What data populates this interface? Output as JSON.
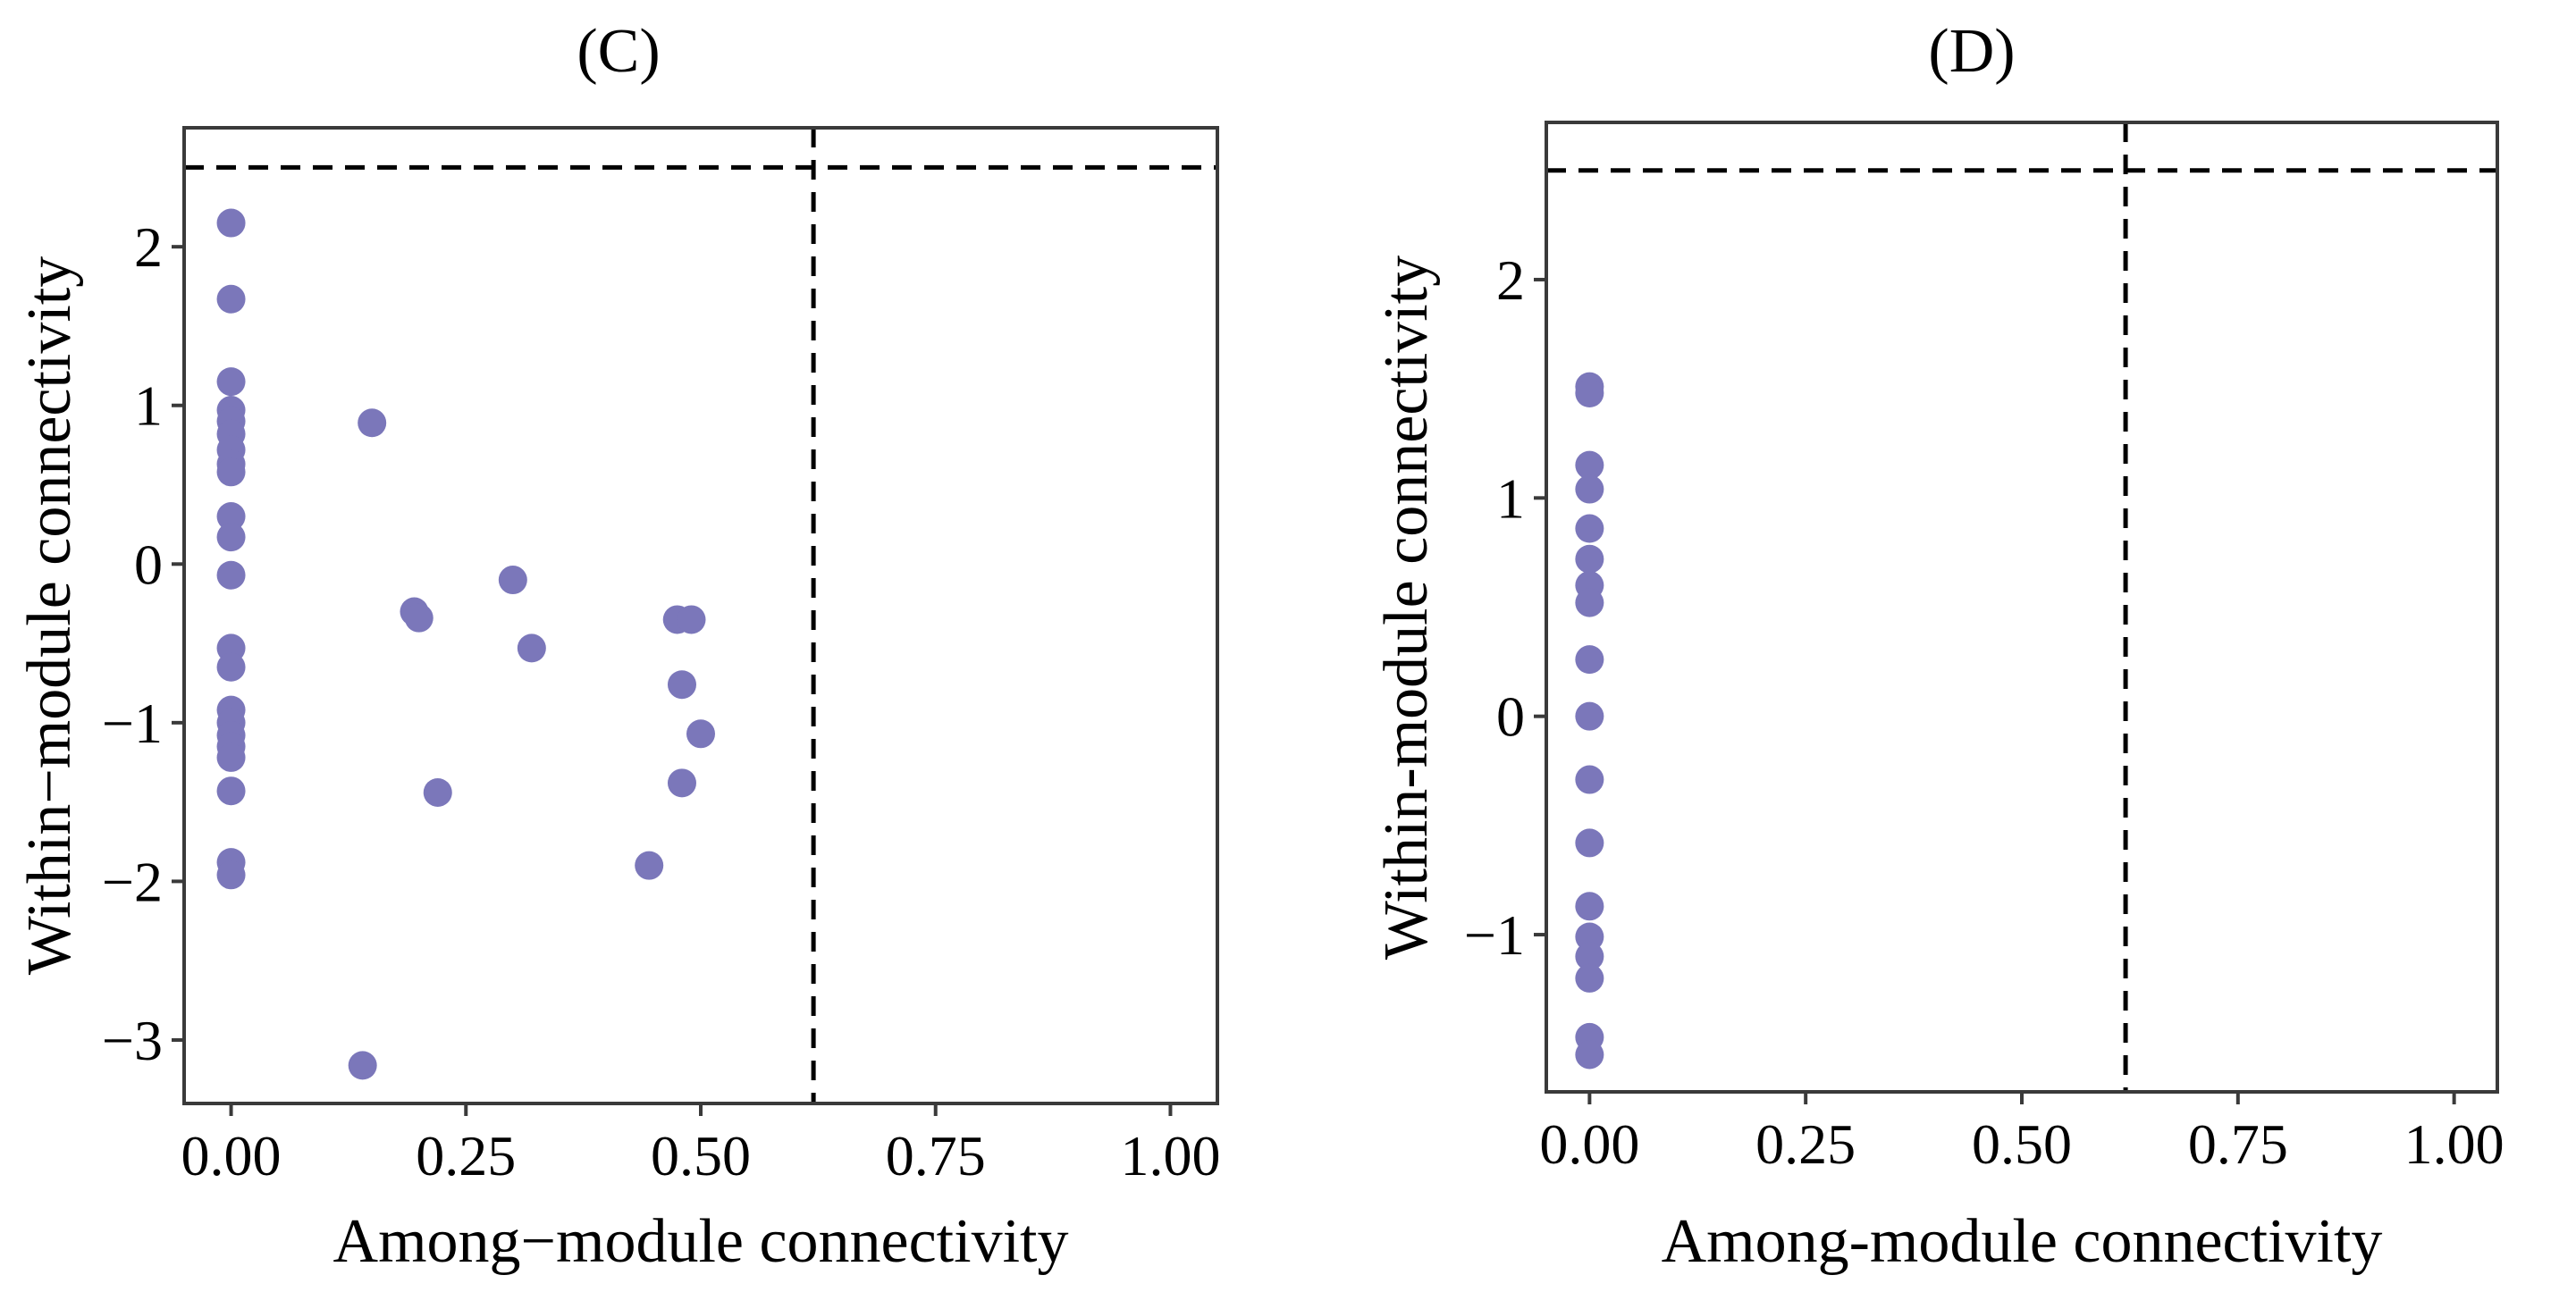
{
  "figure": {
    "colors": {
      "point": "#7B77BA",
      "axis": "#3a3a3a",
      "reference_line": "#000000"
    },
    "panels": [
      {
        "id": "C",
        "title_letter": "C"
      },
      {
        "id": "D",
        "title_letter": "D"
      }
    ]
  },
  "chart_data": [
    {
      "type": "scatter",
      "title": "(C)",
      "xlabel": "Among−module connectivity",
      "ylabel": "Within−module connectivity",
      "xlim": [
        -0.05,
        1.05
      ],
      "ylim": [
        -3.4,
        2.75
      ],
      "xticks": [
        0,
        0.25,
        0.5,
        0.75,
        1
      ],
      "xtick_labels": [
        "0.00",
        "0.25",
        "0.50",
        "0.75",
        "1.00"
      ],
      "yticks": [
        -3,
        -2,
        -1,
        0,
        1,
        2
      ],
      "ytick_labels": [
        "−3",
        "−2",
        "−1",
        "0",
        "1",
        "2"
      ],
      "reference_lines": {
        "x": 0.62,
        "y": 2.5,
        "style": "dashed"
      },
      "grid": false,
      "points": [
        {
          "x": 0.0,
          "y": 2.15
        },
        {
          "x": 0.0,
          "y": 1.67
        },
        {
          "x": 0.0,
          "y": 1.15
        },
        {
          "x": 0.0,
          "y": 0.97
        },
        {
          "x": 0.0,
          "y": 0.9
        },
        {
          "x": 0.0,
          "y": 0.82
        },
        {
          "x": 0.0,
          "y": 0.72
        },
        {
          "x": 0.0,
          "y": 0.63
        },
        {
          "x": 0.0,
          "y": 0.58
        },
        {
          "x": 0.0,
          "y": 0.3
        },
        {
          "x": 0.0,
          "y": 0.17
        },
        {
          "x": 0.0,
          "y": -0.07
        },
        {
          "x": 0.0,
          "y": -0.53
        },
        {
          "x": 0.0,
          "y": -0.65
        },
        {
          "x": 0.0,
          "y": -0.92
        },
        {
          "x": 0.0,
          "y": -1.0
        },
        {
          "x": 0.0,
          "y": -1.08
        },
        {
          "x": 0.0,
          "y": -1.15
        },
        {
          "x": 0.0,
          "y": -1.22
        },
        {
          "x": 0.0,
          "y": -1.43
        },
        {
          "x": 0.0,
          "y": -1.88
        },
        {
          "x": 0.0,
          "y": -1.96
        },
        {
          "x": 0.15,
          "y": 0.89
        },
        {
          "x": 0.14,
          "y": -3.16
        },
        {
          "x": 0.195,
          "y": -0.3
        },
        {
          "x": 0.2,
          "y": -0.34
        },
        {
          "x": 0.22,
          "y": -1.44
        },
        {
          "x": 0.3,
          "y": -0.1
        },
        {
          "x": 0.32,
          "y": -0.53
        },
        {
          "x": 0.445,
          "y": -1.9
        },
        {
          "x": 0.475,
          "y": -0.35
        },
        {
          "x": 0.49,
          "y": -0.35
        },
        {
          "x": 0.48,
          "y": -0.76
        },
        {
          "x": 0.5,
          "y": -1.07
        },
        {
          "x": 0.48,
          "y": -1.38
        }
      ]
    },
    {
      "type": "scatter",
      "title": "(D)",
      "xlabel": "Among-module connectivity",
      "ylabel": "Within-module connectivity",
      "xlim": [
        -0.05,
        1.05
      ],
      "ylim": [
        -1.72,
        2.72
      ],
      "xticks": [
        0,
        0.25,
        0.5,
        0.75,
        1
      ],
      "xtick_labels": [
        "0.00",
        "0.25",
        "0.50",
        "0.75",
        "1.00"
      ],
      "yticks": [
        -1,
        0,
        1,
        2
      ],
      "ytick_labels": [
        "−1",
        "0",
        "1",
        "2"
      ],
      "reference_lines": {
        "x": 0.62,
        "y": 2.5,
        "style": "dashed"
      },
      "grid": false,
      "points": [
        {
          "x": 0.0,
          "y": 1.51
        },
        {
          "x": 0.0,
          "y": 1.48
        },
        {
          "x": 0.0,
          "y": 1.15
        },
        {
          "x": 0.0,
          "y": 1.04
        },
        {
          "x": 0.0,
          "y": 0.86
        },
        {
          "x": 0.0,
          "y": 0.72
        },
        {
          "x": 0.0,
          "y": 0.6
        },
        {
          "x": 0.0,
          "y": 0.52
        },
        {
          "x": 0.0,
          "y": 0.26
        },
        {
          "x": 0.0,
          "y": 0.0
        },
        {
          "x": 0.0,
          "y": -0.29
        },
        {
          "x": 0.0,
          "y": -0.58
        },
        {
          "x": 0.0,
          "y": -0.87
        },
        {
          "x": 0.0,
          "y": -1.01
        },
        {
          "x": 0.0,
          "y": -1.1
        },
        {
          "x": 0.0,
          "y": -1.2
        },
        {
          "x": 0.0,
          "y": -1.47
        },
        {
          "x": 0.0,
          "y": -1.55
        }
      ]
    }
  ]
}
